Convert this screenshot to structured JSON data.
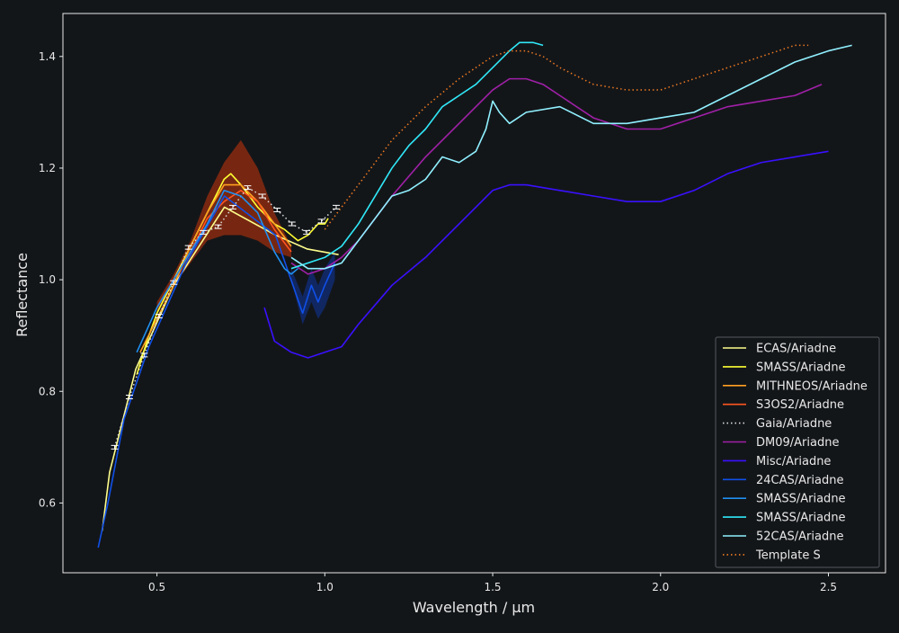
{
  "chart_data": {
    "type": "line",
    "xlabel": "Wavelength / µm",
    "ylabel": "Reflectance",
    "xlim": [
      0.22,
      2.67
    ],
    "ylim": [
      0.475,
      1.477
    ],
    "xticks": [
      0.5,
      1.0,
      1.5,
      2.0,
      2.5
    ],
    "xtick_labels": [
      "0.5",
      "1.0",
      "1.5",
      "2.0",
      "2.5"
    ],
    "yticks": [
      0.6,
      0.8,
      1.0,
      1.2,
      1.4
    ],
    "ytick_labels": [
      "0.6",
      "0.8",
      "1.0",
      "1.2",
      "1.4"
    ],
    "grid": false,
    "legend_position": "lower-right",
    "background": "#131619",
    "series": [
      {
        "name": "ECAS/Ariadne",
        "color": "#fdfd8c",
        "style": "solid",
        "x": [
          0.337,
          0.359,
          0.437,
          0.55,
          0.701,
          0.853,
          0.948,
          1.041
        ],
        "y": [
          0.55,
          0.655,
          0.84,
          0.99,
          1.13,
          1.08,
          1.055,
          1.045
        ]
      },
      {
        "name": "SMASS/Ariadne",
        "color": "#ffff33",
        "style": "solid",
        "x": [
          0.44,
          0.47,
          0.5,
          0.55,
          0.6,
          0.65,
          0.7,
          0.72,
          0.75,
          0.8,
          0.85,
          0.88,
          0.9,
          0.92,
          0.95,
          0.98,
          1.0,
          1.01
        ],
        "y": [
          0.83,
          0.89,
          0.94,
          1.0,
          1.06,
          1.12,
          1.18,
          1.19,
          1.17,
          1.13,
          1.1,
          1.09,
          1.08,
          1.07,
          1.08,
          1.1,
          1.1,
          1.11
        ]
      },
      {
        "name": "MITHNEOS/Ariadne",
        "color": "#ffa020",
        "style": "solid",
        "x": [
          0.45,
          0.5,
          0.55,
          0.6,
          0.65,
          0.7,
          0.75,
          0.8,
          0.85,
          0.9
        ],
        "y": [
          0.87,
          0.93,
          0.99,
          1.06,
          1.12,
          1.17,
          1.17,
          1.14,
          1.1,
          1.06
        ]
      },
      {
        "name": "S3OS2/Ariadne",
        "color": "#ff5520",
        "style": "solid",
        "x": [
          0.5,
          0.55,
          0.6,
          0.65,
          0.7,
          0.75,
          0.8,
          0.85,
          0.9
        ],
        "y": [
          0.95,
          1.0,
          1.05,
          1.11,
          1.14,
          1.16,
          1.14,
          1.09,
          1.05
        ]
      },
      {
        "name": "Gaia/Ariadne",
        "color": "#dddddd",
        "style": "dotted",
        "x": [
          0.374,
          0.418,
          0.462,
          0.506,
          0.55,
          0.594,
          0.638,
          0.682,
          0.726,
          0.77,
          0.814,
          0.858,
          0.902,
          0.946,
          0.99,
          1.034
        ],
        "y": [
          0.7,
          0.79,
          0.865,
          0.935,
          0.995,
          1.058,
          1.085,
          1.095,
          1.13,
          1.165,
          1.15,
          1.125,
          1.1,
          1.085,
          1.105,
          1.13
        ]
      },
      {
        "name": "DM09/Ariadne",
        "color": "#a020a8",
        "style": "solid",
        "x": [
          0.9,
          0.95,
          1.0,
          1.05,
          1.1,
          1.2,
          1.3,
          1.4,
          1.5,
          1.55,
          1.6,
          1.65,
          1.7,
          1.8,
          1.9,
          2.0,
          2.1,
          2.2,
          2.3,
          2.4,
          2.48
        ],
        "y": [
          1.03,
          1.01,
          1.02,
          1.04,
          1.07,
          1.15,
          1.22,
          1.28,
          1.34,
          1.36,
          1.36,
          1.35,
          1.33,
          1.29,
          1.27,
          1.27,
          1.29,
          1.31,
          1.32,
          1.33,
          1.35
        ]
      },
      {
        "name": "Misc/Ariadne",
        "color": "#3a10ff",
        "style": "solid",
        "x": [
          0.82,
          0.85,
          0.9,
          0.95,
          1.0,
          1.05,
          1.1,
          1.2,
          1.3,
          1.4,
          1.5,
          1.55,
          1.6,
          1.7,
          1.8,
          1.9,
          2.0,
          2.1,
          2.2,
          2.3,
          2.4,
          2.5
        ],
        "y": [
          0.95,
          0.89,
          0.87,
          0.86,
          0.87,
          0.88,
          0.92,
          0.99,
          1.04,
          1.1,
          1.16,
          1.17,
          1.17,
          1.16,
          1.15,
          1.14,
          1.14,
          1.16,
          1.19,
          1.21,
          1.22,
          1.23
        ]
      },
      {
        "name": "24CAS/Ariadne",
        "color": "#1050e8",
        "style": "solid",
        "x": [
          0.325,
          0.354,
          0.402,
          0.476,
          0.587,
          0.701,
          0.853,
          0.934,
          0.96,
          0.98,
          1.0,
          1.03
        ],
        "y": [
          0.52,
          0.6,
          0.75,
          0.88,
          1.03,
          1.15,
          1.08,
          0.94,
          0.99,
          0.96,
          0.99,
          1.03
        ]
      },
      {
        "name": "SMASS/Ariadne",
        "color": "#2090f0",
        "style": "solid",
        "x": [
          0.44,
          0.47,
          0.5,
          0.55,
          0.6,
          0.65,
          0.7,
          0.75,
          0.8,
          0.85,
          0.88,
          0.9,
          0.92
        ],
        "y": [
          0.87,
          0.91,
          0.95,
          1.0,
          1.05,
          1.1,
          1.16,
          1.15,
          1.12,
          1.05,
          1.02,
          1.01,
          1.02
        ]
      },
      {
        "name": "SMASS/Ariadne",
        "color": "#30e8f8",
        "style": "solid",
        "x": [
          0.9,
          1.0,
          1.05,
          1.1,
          1.2,
          1.25,
          1.3,
          1.35,
          1.4,
          1.45,
          1.5,
          1.55,
          1.58,
          1.62,
          1.65
        ],
        "y": [
          1.02,
          1.04,
          1.06,
          1.1,
          1.2,
          1.24,
          1.27,
          1.31,
          1.33,
          1.35,
          1.38,
          1.41,
          1.425,
          1.425,
          1.42
        ]
      },
      {
        "name": "52CAS/Ariadne",
        "color": "#90f0ff",
        "style": "solid",
        "x": [
          0.9,
          0.95,
          1.0,
          1.05,
          1.1,
          1.2,
          1.25,
          1.3,
          1.35,
          1.4,
          1.45,
          1.48,
          1.5,
          1.52,
          1.55,
          1.6,
          1.7,
          1.8,
          1.9,
          2.0,
          2.1,
          2.2,
          2.3,
          2.4,
          2.5,
          2.57
        ],
        "y": [
          1.04,
          1.02,
          1.02,
          1.03,
          1.07,
          1.15,
          1.16,
          1.18,
          1.22,
          1.21,
          1.23,
          1.27,
          1.32,
          1.3,
          1.28,
          1.3,
          1.31,
          1.28,
          1.28,
          1.29,
          1.3,
          1.33,
          1.36,
          1.39,
          1.41,
          1.42
        ]
      },
      {
        "name": "Template S",
        "color": "#f07a20",
        "style": "dotted",
        "x": [
          1.0,
          1.05,
          1.1,
          1.2,
          1.3,
          1.4,
          1.5,
          1.55,
          1.6,
          1.65,
          1.7,
          1.8,
          1.9,
          2.0,
          2.1,
          2.2,
          2.3,
          2.4,
          2.44
        ],
        "y": [
          1.09,
          1.13,
          1.17,
          1.25,
          1.31,
          1.36,
          1.4,
          1.41,
          1.41,
          1.4,
          1.38,
          1.35,
          1.34,
          1.34,
          1.36,
          1.38,
          1.4,
          1.42,
          1.42
        ]
      }
    ],
    "bands": [
      {
        "series": "S3OS2/Ariadne",
        "color": "#8a2a10",
        "x": [
          0.5,
          0.55,
          0.6,
          0.65,
          0.7,
          0.75,
          0.8,
          0.85,
          0.9
        ],
        "upper": [
          0.96,
          1.01,
          1.07,
          1.15,
          1.21,
          1.25,
          1.2,
          1.12,
          1.06
        ],
        "lower": [
          0.94,
          0.99,
          1.03,
          1.07,
          1.08,
          1.08,
          1.07,
          1.05,
          1.04
        ]
      },
      {
        "series": "24CAS/Ariadne",
        "color": "#102a70",
        "x": [
          0.9,
          0.934,
          0.96,
          0.98,
          1.0,
          1.03
        ],
        "upper": [
          1.02,
          0.97,
          1.02,
          0.99,
          1.02,
          1.05
        ],
        "lower": [
          1.0,
          0.92,
          0.96,
          0.93,
          0.95,
          1.0
        ]
      }
    ],
    "errorbar_points": {
      "series": "Gaia/Ariadne",
      "x": [
        0.374,
        0.418,
        0.462,
        0.506,
        0.55,
        0.594,
        0.638,
        0.682,
        0.726,
        0.77,
        0.814,
        0.858,
        0.902,
        0.946,
        0.99,
        1.034
      ],
      "y": [
        0.7,
        0.79,
        0.865,
        0.935,
        0.995,
        1.058,
        1.085,
        1.095,
        1.13,
        1.165,
        1.15,
        1.125,
        1.1,
        1.085,
        1.105,
        1.13
      ]
    }
  }
}
